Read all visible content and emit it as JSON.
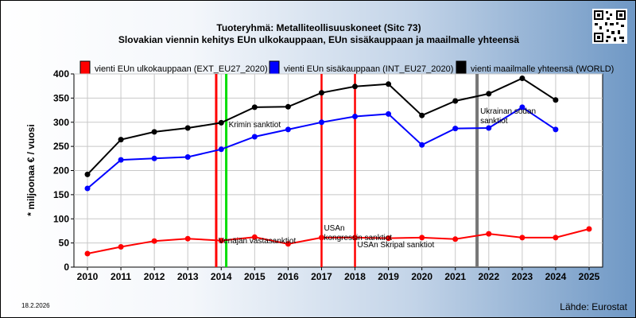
{
  "header": {
    "title_line1": "Tuoteryhmä: Metalliteollisuuskoneet (Sitc 73)",
    "title_line2": "Slovakian viennin kehitys EUn ulkokauppaan, EUn sisäkauppaan ja maailmalle yhteensä"
  },
  "footer": {
    "date": "18.2.2026",
    "source": "Lähde: Eurostat"
  },
  "chart_data": {
    "type": "line",
    "ylabel": "* miljoonaa € / vuosi",
    "ylim": [
      0,
      400
    ],
    "yticks": [
      0,
      50,
      100,
      150,
      200,
      250,
      300,
      350,
      400
    ],
    "x": [
      "2010",
      "2011",
      "2012",
      "2013",
      "2014",
      "2015",
      "2016",
      "2017",
      "2018",
      "2019",
      "2020",
      "2021",
      "2022",
      "2023",
      "2024",
      "2025"
    ],
    "grid": true,
    "legend_position": "top",
    "series": [
      {
        "name": "vienti EUn ulkokauppaan (EXT_EU27_2020)",
        "color": "#ff0000",
        "values": [
          28,
          42,
          54,
          59,
          55,
          62,
          48,
          61,
          61,
          60,
          61,
          58,
          69,
          61,
          61,
          79
        ]
      },
      {
        "name": "vienti EUn sisäkauppaan (INT_EU27_2020)",
        "color": "#0000ff",
        "values": [
          163,
          222,
          225,
          228,
          244,
          270,
          285,
          300,
          312,
          317,
          253,
          287,
          288,
          331,
          285,
          null
        ]
      },
      {
        "name": "vienti maailmalle yhteensä (WORLD)",
        "color": "#000000",
        "values": [
          192,
          264,
          280,
          288,
          299,
          331,
          332,
          361,
          374,
          379,
          314,
          344,
          359,
          391,
          346,
          null
        ]
      }
    ],
    "events": [
      {
        "x": 2013.85,
        "color": "#ff0000",
        "label": "Venäjän vastasanktiot"
      },
      {
        "x": 2014.15,
        "color": "#00dd00",
        "label": "Krimin sanktiot"
      },
      {
        "x": 2017.0,
        "color": "#ff0000",
        "label": "USAn kongressin sanktiot"
      },
      {
        "x": 2018.0,
        "color": "#ff0000",
        "label": "USAn Skripal sanktiot"
      },
      {
        "x": 2021.65,
        "color": "#777777",
        "label": "Ukrainan sodan sanktiot"
      }
    ]
  }
}
